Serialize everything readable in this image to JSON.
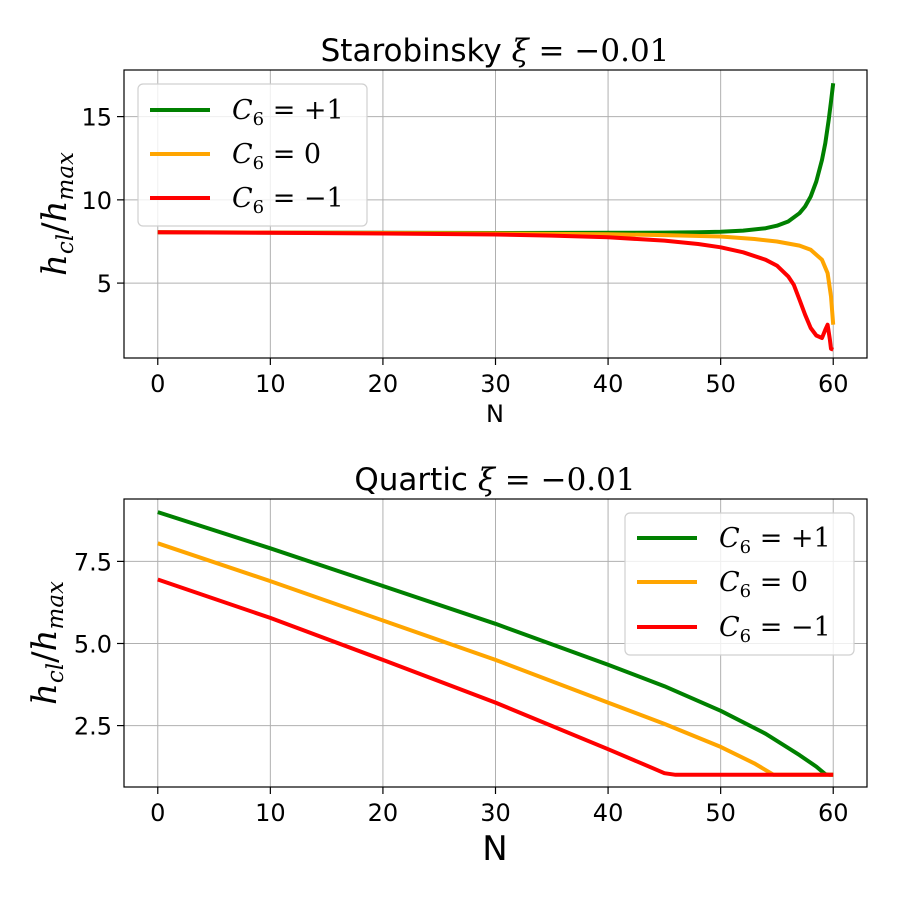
{
  "chart_data": [
    {
      "type": "line",
      "title": "Starobinsky ξ = −0.01",
      "title_parts": {
        "name": "Starobinsky",
        "symbol": "ξ",
        "rest": " = −0.01"
      },
      "xlabel": "N",
      "ylabel": "h_cl/h_max",
      "ylabel_parts": {
        "h1": "h",
        "s1": "cl",
        "slash": "/",
        "h2": "h",
        "s2": "max"
      },
      "xlim": [
        -3,
        63
      ],
      "ylim": [
        0.5,
        17.8
      ],
      "xticks": [
        0,
        10,
        20,
        30,
        40,
        50,
        60
      ],
      "xtick_labels": [
        "0",
        "10",
        "20",
        "30",
        "40",
        "50",
        "60"
      ],
      "yticks": [
        5,
        10,
        15
      ],
      "ytick_labels": [
        "5",
        "10",
        "15"
      ],
      "grid": true,
      "legend_position": "top-left",
      "series": [
        {
          "name": "C6 = +1",
          "label_parts": {
            "c": "C",
            "sub": "6",
            "eq": " = +1"
          },
          "color": "#008000",
          "x": [
            0,
            10,
            20,
            30,
            40,
            45,
            48,
            50,
            52,
            54,
            55,
            56,
            57,
            57.5,
            58,
            58.5,
            59,
            59.3,
            59.6,
            59.8,
            60
          ],
          "y": [
            8.05,
            8.03,
            8.02,
            8.01,
            8.02,
            8.03,
            8.05,
            8.08,
            8.15,
            8.3,
            8.45,
            8.7,
            9.2,
            9.6,
            10.2,
            11.1,
            12.4,
            13.4,
            14.8,
            15.9,
            17.0
          ]
        },
        {
          "name": "C6 = 0",
          "label_parts": {
            "c": "C",
            "sub": "6",
            "eq": " = 0"
          },
          "color": "#ffa500",
          "x": [
            0,
            10,
            20,
            30,
            40,
            45,
            50,
            53,
            55,
            57,
            58,
            59,
            59.5,
            59.8,
            60
          ],
          "y": [
            8.05,
            8.03,
            8.01,
            7.98,
            7.93,
            7.88,
            7.8,
            7.65,
            7.5,
            7.25,
            7.0,
            6.4,
            5.6,
            4.2,
            2.5
          ]
        },
        {
          "name": "C6 = −1",
          "label_parts": {
            "c": "C",
            "sub": "6",
            "eq": " = −1"
          },
          "color": "#ff0000",
          "x": [
            0,
            10,
            20,
            30,
            35,
            40,
            45,
            48,
            50,
            52,
            54,
            55,
            56,
            56.5,
            57,
            57.5,
            58,
            58.5,
            59,
            59.3,
            59.5,
            59.7,
            59.8,
            60
          ],
          "y": [
            8.05,
            8.02,
            7.98,
            7.92,
            7.85,
            7.75,
            7.55,
            7.35,
            7.15,
            6.85,
            6.4,
            6.05,
            5.4,
            4.9,
            4.0,
            3.1,
            2.3,
            1.85,
            1.7,
            2.2,
            2.5,
            1.6,
            1.05,
            1.0
          ]
        }
      ]
    },
    {
      "type": "line",
      "title": "Quartic ξ = −0.01",
      "title_parts": {
        "name": "Quartic",
        "symbol": "ξ",
        "rest": " = −0.01"
      },
      "xlabel": "N",
      "ylabel": "h_cl/h_max",
      "ylabel_parts": {
        "h1": "h",
        "s1": "cl",
        "slash": "/",
        "h2": "h",
        "s2": "max"
      },
      "xlim": [
        -3,
        63
      ],
      "ylim": [
        0.63,
        9.4
      ],
      "xticks": [
        0,
        10,
        20,
        30,
        40,
        50,
        60
      ],
      "xtick_labels": [
        "0",
        "10",
        "20",
        "30",
        "40",
        "50",
        "60"
      ],
      "yticks": [
        2.5,
        5.0,
        7.5
      ],
      "ytick_labels": [
        "2.5",
        "5.0",
        "7.5"
      ],
      "grid": true,
      "legend_position": "top-right",
      "series": [
        {
          "name": "C6 = +1",
          "label_parts": {
            "c": "C",
            "sub": "6",
            "eq": " = +1"
          },
          "color": "#008000",
          "x": [
            0,
            10,
            20,
            30,
            40,
            45,
            50,
            54,
            57,
            58.5,
            59.3,
            59.7,
            60
          ],
          "y": [
            9.0,
            7.9,
            6.75,
            5.6,
            4.35,
            3.7,
            2.95,
            2.25,
            1.6,
            1.25,
            1.02,
            1.0,
            1.0
          ]
        },
        {
          "name": "C6 = 0",
          "label_parts": {
            "c": "C",
            "sub": "6",
            "eq": " = 0"
          },
          "color": "#ffa500",
          "x": [
            0,
            10,
            20,
            30,
            40,
            45,
            50,
            53,
            54.7,
            60
          ],
          "y": [
            8.05,
            6.9,
            5.7,
            4.5,
            3.2,
            2.55,
            1.85,
            1.35,
            1.0,
            1.0
          ]
        },
        {
          "name": "C6 = −1",
          "label_parts": {
            "c": "C",
            "sub": "6",
            "eq": " = −1"
          },
          "color": "#ff0000",
          "x": [
            0,
            10,
            20,
            30,
            40,
            44,
            45,
            46,
            60
          ],
          "y": [
            6.95,
            5.78,
            4.5,
            3.2,
            1.78,
            1.2,
            1.05,
            1.0,
            1.0
          ]
        }
      ]
    }
  ]
}
